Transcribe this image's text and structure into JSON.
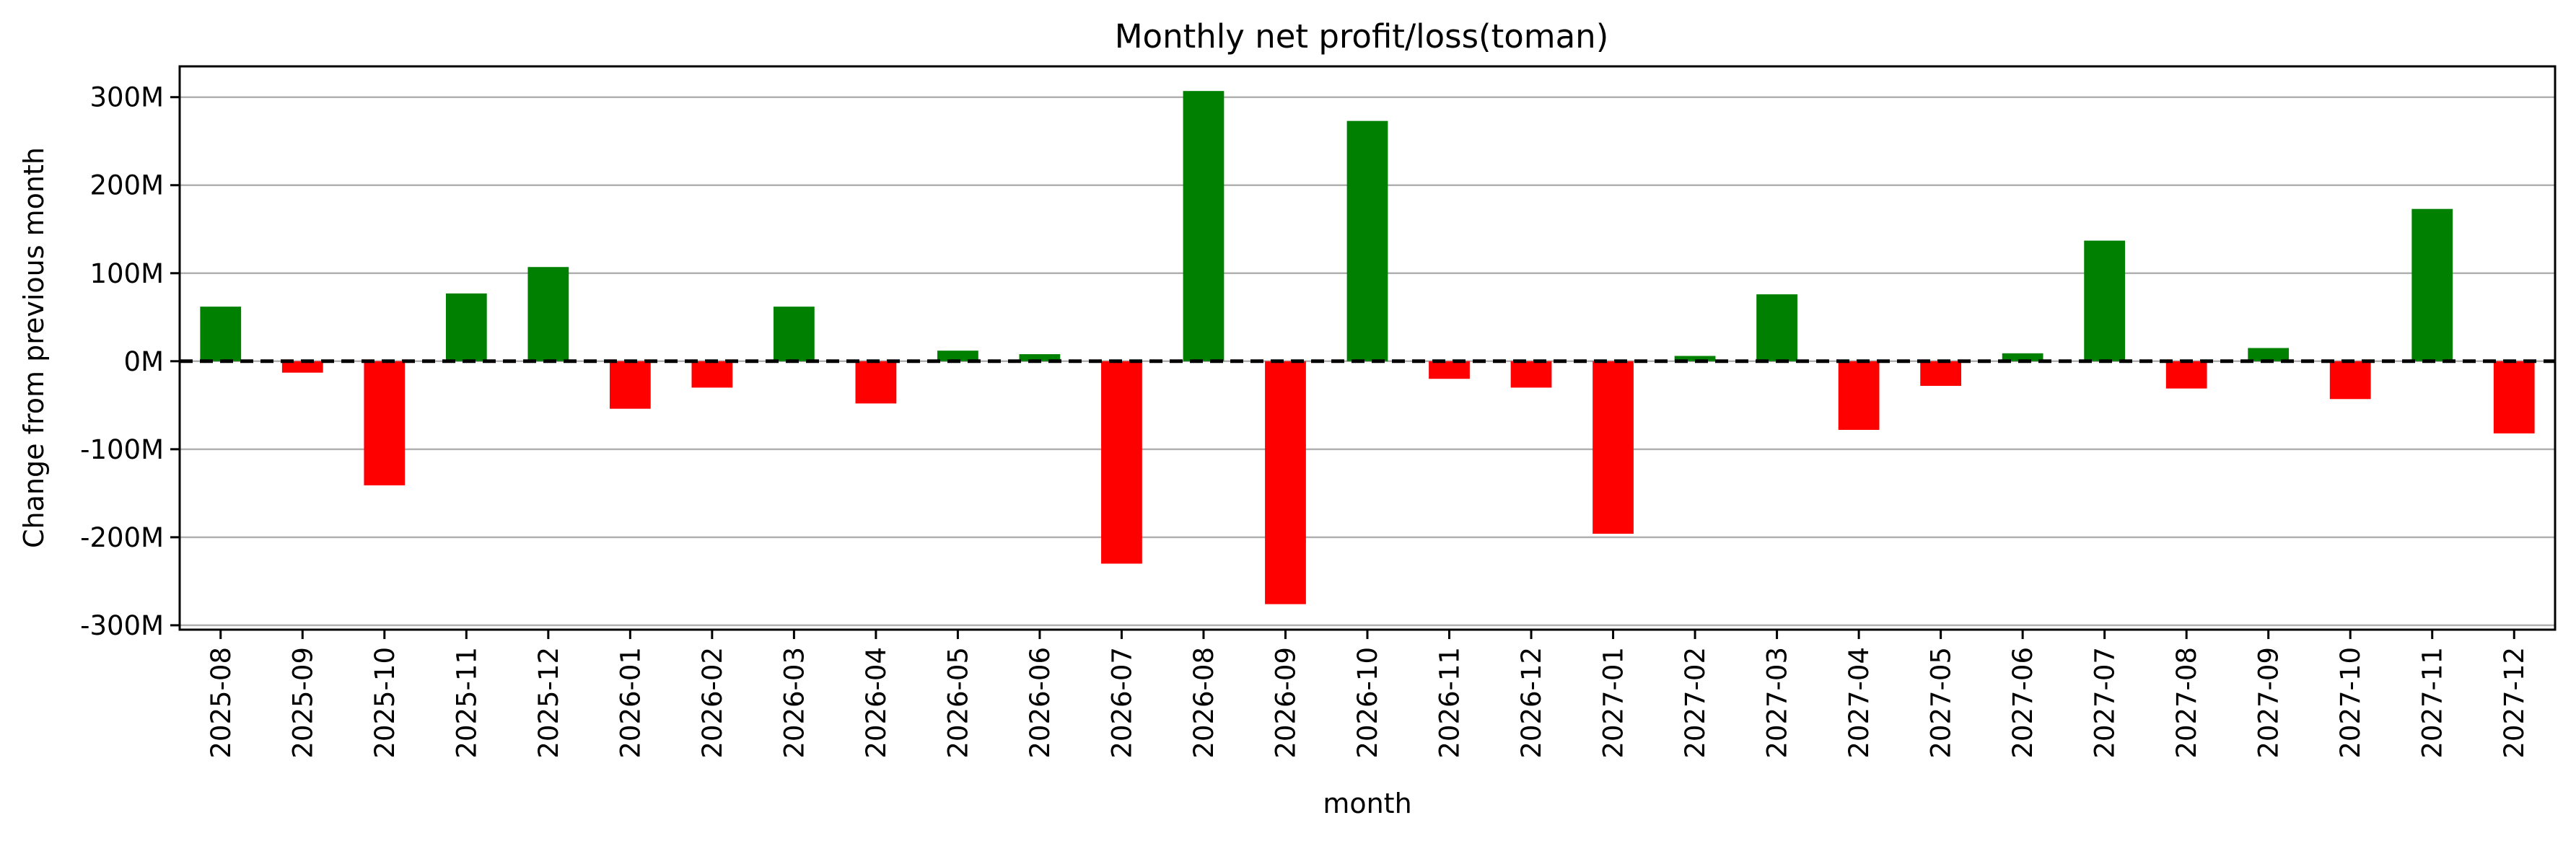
{
  "chart_data": {
    "type": "bar",
    "title": "Monthly net profit/loss(toman)",
    "xlabel": "month",
    "ylabel": "Change from previous month",
    "ylim": [
      -305,
      335
    ],
    "yticks": [
      300,
      200,
      100,
      0,
      -100,
      -200,
      -300
    ],
    "ytick_labels": [
      "300M",
      "200M",
      "100M",
      "0M",
      "-100M",
      "-200M",
      "-300M"
    ],
    "grid": "horizontal",
    "zero_line": "dashed",
    "colors": {
      "positive": "#008000",
      "negative": "#ff0000",
      "grid": "#b0b0b0",
      "zero_line": "#000000"
    },
    "categories": [
      "2025-08",
      "2025-09",
      "2025-10",
      "2025-11",
      "2025-12",
      "2026-01",
      "2026-02",
      "2026-03",
      "2026-04",
      "2026-05",
      "2026-06",
      "2026-07",
      "2026-08",
      "2026-09",
      "2026-10",
      "2026-11",
      "2026-12",
      "2027-01",
      "2027-02",
      "2027-03",
      "2027-04",
      "2027-05",
      "2027-06",
      "2027-07",
      "2027-08",
      "2027-09",
      "2027-10",
      "2027-11",
      "2027-12"
    ],
    "values": [
      62,
      -13,
      -141,
      77,
      107,
      -54,
      -30,
      62,
      -48,
      12,
      8,
      -230,
      307,
      -276,
      273,
      -20,
      -30,
      -196,
      6,
      76,
      -78,
      -28,
      9,
      137,
      -31,
      15,
      -43,
      173,
      -82
    ]
  }
}
